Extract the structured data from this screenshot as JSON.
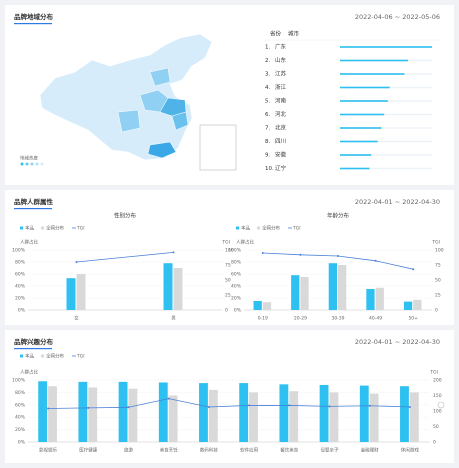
{
  "panels": [
    {
      "title": "品牌地域分布",
      "date": "2022-04-06 ~ 2022-05-06"
    },
    {
      "title": "品牌人群属性",
      "date": "2022-04-01 ~ 2022-04-30"
    },
    {
      "title": "品牌兴趣分布",
      "date": "2022-04-01 ~ 2022-04-30"
    }
  ],
  "map": {
    "legend_title": "地域热度"
  },
  "ranking": {
    "tabs": [
      "省份",
      "城市"
    ],
    "ranks": [
      "1.",
      "2.",
      "3.",
      "4.",
      "5.",
      "6.",
      "7.",
      "8.",
      "9.",
      "10."
    ],
    "categories": [
      "广东",
      "山东",
      "江苏",
      "浙江",
      "河南",
      "河北",
      "北京",
      "四川",
      "安徽",
      "辽宁"
    ],
    "values": [
      100,
      74,
      70,
      54,
      52,
      48,
      45,
      41,
      34,
      32
    ],
    "color": "#2ec0f0"
  },
  "chart_data": [
    {
      "type": "bar",
      "title": "性别分布",
      "categories": [
        "女",
        "男"
      ],
      "ylabel": "人群占比",
      "y2label": "TGI",
      "series": [
        {
          "name": "本品",
          "color": "#2ec0f0",
          "values": [
            53,
            78
          ]
        },
        {
          "name": "全网分布",
          "color": "#d9d9d9",
          "values": [
            60,
            70
          ]
        },
        {
          "name": "TGI",
          "color": "#4a80d8",
          "axis": "y2",
          "values": [
            80,
            96
          ]
        }
      ],
      "ylim": [
        0,
        100
      ],
      "yticks": [
        {
          "value": 0,
          "label": "0%"
        },
        {
          "value": 20,
          "label": "20%"
        },
        {
          "value": 40,
          "label": "40%"
        },
        {
          "value": 60,
          "label": "60%"
        },
        {
          "value": 80,
          "label": "80%"
        },
        {
          "value": 100,
          "label": "100%"
        }
      ],
      "y2lim": [
        0,
        100
      ],
      "y2ticks": [
        0,
        25,
        50,
        75,
        100
      ],
      "grid": true
    },
    {
      "type": "bar",
      "title": "年龄分布",
      "categories": [
        "0-19",
        "20-29",
        "30-39",
        "40-49",
        "50+"
      ],
      "ylabel": "人群占比",
      "y2label": "TGI",
      "series": [
        {
          "name": "本品",
          "color": "#2ec0f0",
          "values": [
            15,
            58,
            78,
            35,
            14
          ]
        },
        {
          "name": "全网分布",
          "color": "#d9d9d9",
          "values": [
            13,
            55,
            75,
            37,
            17
          ]
        },
        {
          "name": "TGI",
          "color": "#4a80d8",
          "axis": "y2",
          "values": [
            95,
            92,
            90,
            82,
            68
          ]
        }
      ],
      "ylim": [
        0,
        100
      ],
      "yticks": [
        {
          "value": 0,
          "label": "0%"
        },
        {
          "value": 20,
          "label": "20%"
        },
        {
          "value": 40,
          "label": "40%"
        },
        {
          "value": 60,
          "label": "60%"
        },
        {
          "value": 80,
          "label": "80%"
        },
        {
          "value": 100,
          "label": "100%"
        }
      ],
      "y2lim": [
        0,
        100
      ],
      "y2ticks": [
        0,
        25,
        50,
        75,
        100
      ],
      "grid": true
    },
    {
      "type": "bar",
      "categories": [
        "影视娱乐",
        "医疗健康",
        "旅游",
        "美食烹饪",
        "数码科技",
        "软件应用",
        "餐饮美食",
        "母婴亲子",
        "金融理财",
        "休闲游戏"
      ],
      "ylabel": "人群占比",
      "y2label": "TGI",
      "series": [
        {
          "name": "本品",
          "color": "#2ec0f0",
          "values": [
            98,
            97,
            97,
            96,
            95,
            95,
            93,
            92,
            91,
            90
          ]
        },
        {
          "name": "全网分布",
          "color": "#d9d9d9",
          "values": [
            90,
            88,
            86,
            75,
            84,
            80,
            82,
            80,
            78,
            80
          ]
        },
        {
          "name": "TGI",
          "color": "#4a80d8",
          "axis": "y2",
          "values": [
            108,
            110,
            112,
            140,
            113,
            118,
            118,
            115,
            117,
            113
          ]
        }
      ],
      "ylim": [
        0,
        100
      ],
      "yticks": [
        {
          "value": 0,
          "label": "0%"
        },
        {
          "value": 20,
          "label": "20%"
        },
        {
          "value": 40,
          "label": "40%"
        },
        {
          "value": 60,
          "label": "60%"
        },
        {
          "value": 80,
          "label": "80%"
        },
        {
          "value": 100,
          "label": "100%"
        }
      ],
      "y2lim": [
        0,
        200
      ],
      "y2ticks": [
        0,
        50,
        100,
        150,
        200
      ],
      "grid": true
    }
  ]
}
